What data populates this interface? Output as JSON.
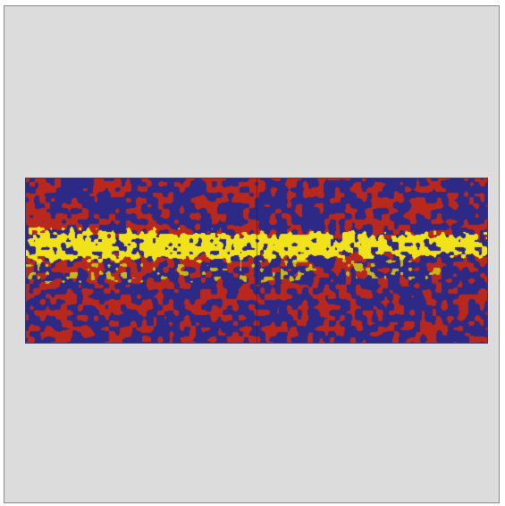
{
  "scene": {
    "background_color": "#dcdcdc",
    "border_color": "#8a8a8a",
    "artwork": {
      "description_colors": {
        "red": "#b8281c",
        "blue": "#2c2a86",
        "yellow": "#f2e21a",
        "yellow_dark": "#c8b816"
      },
      "panel_count": 2,
      "noise_seed": 7
    }
  }
}
